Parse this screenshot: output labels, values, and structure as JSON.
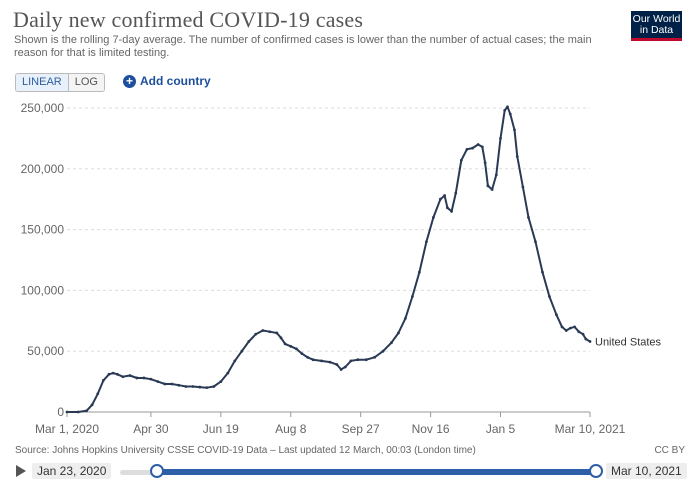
{
  "header": {
    "title": "Daily new confirmed COVID-19 cases",
    "subtitle": "Shown is the rolling 7-day average. The number of confirmed cases is lower than the number of actual cases; the main reason for that is limited testing.",
    "logo": "Our World in Data"
  },
  "controls": {
    "linear_label": "LINEAR",
    "log_label": "LOG",
    "add_country_label": "Add country"
  },
  "footer": {
    "source": "Source: Johns Hopkins University CSSE COVID-19 Data – Last updated 12 March, 00:03 (London time)",
    "license": "CC BY"
  },
  "timeline": {
    "start_date": "Jan 23, 2020",
    "end_date": "Mar 10, 2021"
  },
  "colors": {
    "series": "#2a3a55",
    "accent": "#2d5ea8"
  },
  "chart_data": {
    "type": "line",
    "title": "Daily new confirmed COVID-19 cases",
    "ylim": [
      0,
      250000
    ],
    "yticks": [
      0,
      50000,
      100000,
      150000,
      200000,
      250000
    ],
    "ytick_labels": [
      "0",
      "50,000",
      "100,000",
      "150,000",
      "200,000",
      "250,000"
    ],
    "xlim_days": [
      0,
      374
    ],
    "xticks": [
      {
        "day": 0,
        "label": "Mar 1, 2020"
      },
      {
        "day": 60,
        "label": "Apr 30"
      },
      {
        "day": 110,
        "label": "Jun 19"
      },
      {
        "day": 160,
        "label": "Aug 8"
      },
      {
        "day": 210,
        "label": "Sep 27"
      },
      {
        "day": 260,
        "label": "Nov 16"
      },
      {
        "day": 310,
        "label": "Jan 5"
      },
      {
        "day": 374,
        "label": "Mar 10, 2021"
      }
    ],
    "grid": true,
    "series": [
      {
        "name": "United States",
        "points": [
          [
            0,
            0
          ],
          [
            8,
            0
          ],
          [
            14,
            1000
          ],
          [
            18,
            6000
          ],
          [
            22,
            15000
          ],
          [
            26,
            26000
          ],
          [
            30,
            31000
          ],
          [
            33,
            32000
          ],
          [
            36,
            31000
          ],
          [
            40,
            29000
          ],
          [
            45,
            30000
          ],
          [
            50,
            28000
          ],
          [
            55,
            28000
          ],
          [
            60,
            27000
          ],
          [
            65,
            25000
          ],
          [
            70,
            23000
          ],
          [
            75,
            23000
          ],
          [
            80,
            22000
          ],
          [
            85,
            21000
          ],
          [
            90,
            21000
          ],
          [
            95,
            20500
          ],
          [
            100,
            20000
          ],
          [
            105,
            21000
          ],
          [
            110,
            25000
          ],
          [
            115,
            32000
          ],
          [
            120,
            42000
          ],
          [
            125,
            50000
          ],
          [
            130,
            58000
          ],
          [
            135,
            64000
          ],
          [
            140,
            67000
          ],
          [
            145,
            66000
          ],
          [
            150,
            65000
          ],
          [
            153,
            61000
          ],
          [
            156,
            56000
          ],
          [
            160,
            54000
          ],
          [
            164,
            52000
          ],
          [
            168,
            48000
          ],
          [
            172,
            45000
          ],
          [
            176,
            43000
          ],
          [
            182,
            42000
          ],
          [
            188,
            41000
          ],
          [
            193,
            39000
          ],
          [
            196,
            35000
          ],
          [
            199,
            37000
          ],
          [
            203,
            42000
          ],
          [
            208,
            43000
          ],
          [
            214,
            43000
          ],
          [
            220,
            45000
          ],
          [
            226,
            50000
          ],
          [
            232,
            57000
          ],
          [
            237,
            65000
          ],
          [
            242,
            77000
          ],
          [
            247,
            95000
          ],
          [
            252,
            115000
          ],
          [
            257,
            140000
          ],
          [
            262,
            160000
          ],
          [
            267,
            175000
          ],
          [
            270,
            178000
          ],
          [
            272,
            168000
          ],
          [
            275,
            165000
          ],
          [
            278,
            180000
          ],
          [
            282,
            207000
          ],
          [
            286,
            216000
          ],
          [
            290,
            217000
          ],
          [
            294,
            220000
          ],
          [
            297,
            218000
          ],
          [
            299,
            205000
          ],
          [
            301,
            186000
          ],
          [
            304,
            183000
          ],
          [
            307,
            195000
          ],
          [
            310,
            225000
          ],
          [
            313,
            248000
          ],
          [
            315,
            251000
          ],
          [
            317,
            245000
          ],
          [
            320,
            232000
          ],
          [
            322,
            210000
          ],
          [
            326,
            185000
          ],
          [
            330,
            160000
          ],
          [
            335,
            140000
          ],
          [
            340,
            115000
          ],
          [
            345,
            95000
          ],
          [
            350,
            80000
          ],
          [
            354,
            70000
          ],
          [
            357,
            67000
          ],
          [
            360,
            69000
          ],
          [
            363,
            70000
          ],
          [
            366,
            66000
          ],
          [
            369,
            64000
          ],
          [
            371,
            60000
          ],
          [
            374,
            58000
          ]
        ]
      }
    ]
  }
}
